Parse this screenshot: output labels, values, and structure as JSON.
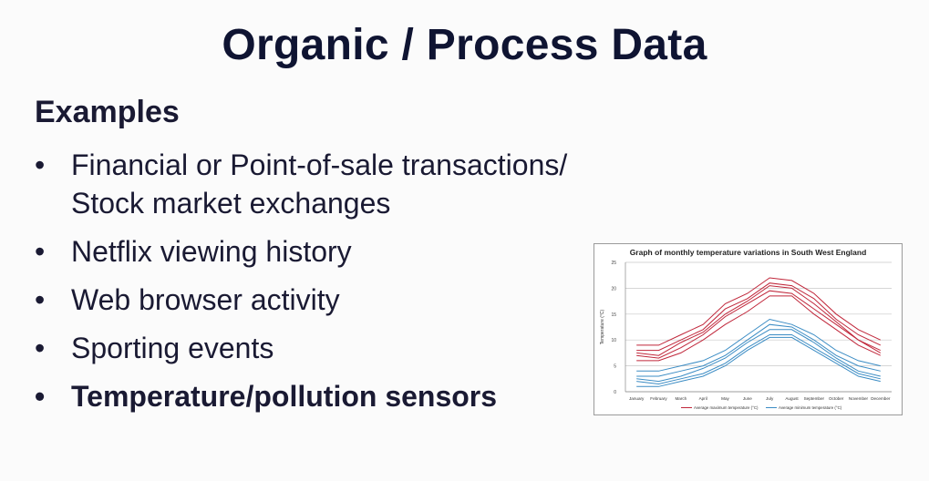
{
  "slide": {
    "title": "Organic / Process Data",
    "subhead": "Examples",
    "bullet_marker": "•",
    "bullets": [
      {
        "text": "Financial or Point-of-sale transactions/",
        "text2": "Stock market exchanges"
      },
      {
        "text": "Netflix viewing history"
      },
      {
        "text": "Web browser activity"
      },
      {
        "text": "Sporting events"
      },
      {
        "text": "Temperature/pollution sensors"
      }
    ]
  },
  "chart_data": {
    "type": "line",
    "title": "Graph of monthly temperature variations in South West England",
    "ylabel": "Temperature (°C)",
    "xlabel": "",
    "ylim": [
      0,
      25
    ],
    "yticks": [
      0,
      5,
      10,
      15,
      20,
      25
    ],
    "grid": true,
    "legend_position": "bottom",
    "categories": [
      "January",
      "February",
      "March",
      "April",
      "May",
      "June",
      "July",
      "August",
      "September",
      "October",
      "November",
      "December"
    ],
    "series": [
      {
        "name": "Average maximum temperature (°C)",
        "color": "#c0263a",
        "values": [
          9,
          9,
          11,
          13,
          17,
          19,
          22,
          21.5,
          19,
          15,
          12,
          10
        ]
      },
      {
        "name": "",
        "color": "#c0263a",
        "values": [
          8,
          8,
          10,
          12,
          16,
          18,
          21,
          20.5,
          18,
          14,
          11,
          9
        ]
      },
      {
        "name": "",
        "color": "#c0263a",
        "values": [
          7.5,
          7,
          9.5,
          11.5,
          15,
          17.5,
          20.5,
          20,
          17,
          13.5,
          10,
          8
        ]
      },
      {
        "name": "",
        "color": "#c0263a",
        "values": [
          7,
          6.5,
          8.5,
          11,
          14.5,
          17,
          19.5,
          19,
          16,
          13,
          10,
          7.5
        ]
      },
      {
        "name": "",
        "color": "#c0263a",
        "values": [
          6,
          6,
          7.5,
          10,
          13,
          15.5,
          18.5,
          18.5,
          15,
          12,
          9,
          7
        ]
      },
      {
        "name": "Average minimum temperature (°C)",
        "color": "#3b8cc4",
        "values": [
          4,
          4,
          5,
          6,
          8,
          11,
          14,
          13,
          11,
          8,
          6,
          5
        ]
      },
      {
        "name": "",
        "color": "#3b8cc4",
        "values": [
          3,
          3,
          4,
          5,
          7,
          10,
          13,
          12.5,
          10,
          7,
          5,
          4
        ]
      },
      {
        "name": "",
        "color": "#3b8cc4",
        "values": [
          2.5,
          2,
          3,
          4.5,
          6.5,
          9.5,
          12,
          12,
          9.5,
          6.5,
          4,
          3
        ]
      },
      {
        "name": "",
        "color": "#3b8cc4",
        "values": [
          2,
          1.5,
          2.5,
          3.5,
          5.5,
          8.5,
          11,
          11,
          8.5,
          6,
          3.5,
          2.5
        ]
      },
      {
        "name": "",
        "color": "#3b8cc4",
        "values": [
          1,
          1,
          2,
          3,
          5,
          8,
          10.5,
          10.5,
          8,
          5.5,
          3,
          2
        ]
      }
    ]
  }
}
